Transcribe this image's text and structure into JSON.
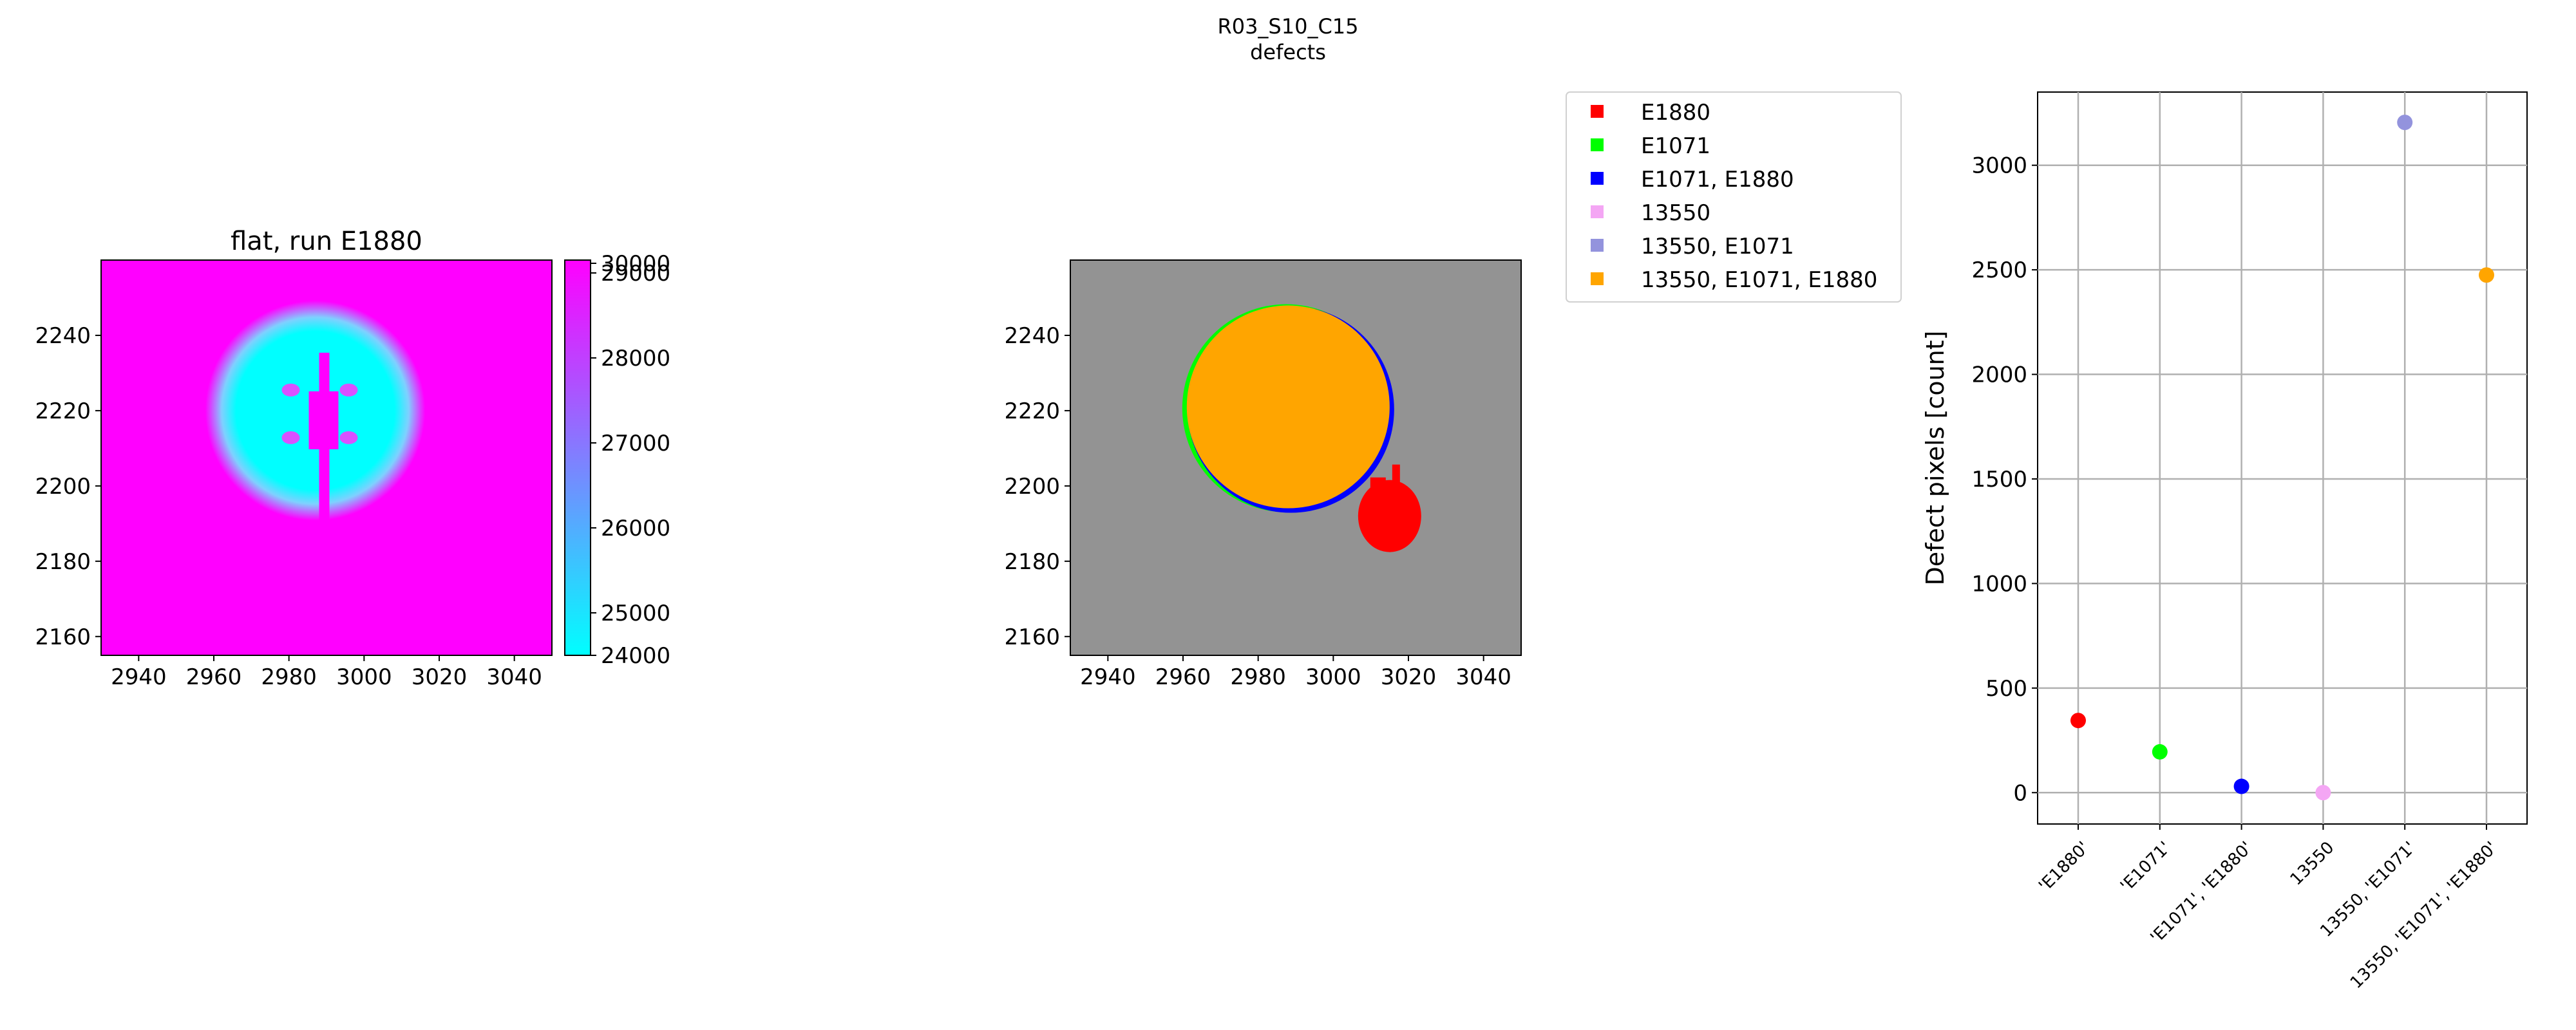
{
  "figure": {
    "suptitle_line1": "R03_S10_C15",
    "suptitle_line2": "defects"
  },
  "colors": {
    "E1880": "#ff0000",
    "E1071": "#00ff00",
    "E1071, E1880": "#0000ff",
    "13550": "#f4a6f4",
    "13550, E1071": "#9393dd",
    "13550, E1071, E1880": "#ffa500",
    "background_gray": "#939393",
    "grid": "#b0b0b0"
  },
  "chart_data": [
    {
      "type": "heatmap",
      "title": "flat, run E1880",
      "xlim": [
        2930,
        3050
      ],
      "ylim": [
        2155,
        2260
      ],
      "xticks": [
        2940,
        2960,
        2980,
        3000,
        3020,
        3040
      ],
      "yticks": [
        2160,
        2180,
        2200,
        2220,
        2240
      ],
      "colorbar": {
        "min": 24000,
        "max": 30000,
        "colors": [
          "#00ffff",
          "#ff00ff"
        ],
        "ticks": [
          24000,
          25000,
          26000,
          27000,
          28000,
          29000,
          30000
        ]
      },
      "features": {
        "spot_center": [
          2987,
          2220
        ],
        "spot_radius": 24,
        "background_level": 30000,
        "spot_level": 24000
      }
    },
    {
      "type": "heatmap",
      "title": "",
      "xlim": [
        2930,
        3050
      ],
      "ylim": [
        2155,
        2260
      ],
      "xticks": [
        2940,
        2960,
        2980,
        3000,
        3020,
        3040
      ],
      "yticks": [
        2160,
        2180,
        2200,
        2220,
        2240
      ],
      "regions": [
        {
          "label": "13550, E1071, E1880",
          "center": [
            2988,
            2221
          ],
          "radius": 27
        },
        {
          "label": "E1880",
          "center": [
            3015,
            2192
          ],
          "radius": 8
        }
      ],
      "legend": {
        "placement": "upper-right",
        "entries": [
          "E1880",
          "E1071",
          "E1071, E1880",
          "13550",
          "13550, E1071",
          "13550, E1071, E1880"
        ]
      }
    },
    {
      "type": "scatter",
      "title": "",
      "xlabel": "",
      "ylabel": "Defect pixels [count]",
      "ylim": [
        -150,
        3350
      ],
      "yticks": [
        0,
        500,
        1000,
        1500,
        2000,
        2500,
        3000
      ],
      "grid": true,
      "categories": [
        "'E1880'",
        "'E1071'",
        "'E1071', 'E1880'",
        "13550",
        "13550, 'E1071'",
        "13550, 'E1071', 'E1880'"
      ],
      "values": [
        345,
        195,
        30,
        0,
        3205,
        2475
      ],
      "point_colors": [
        "#ff0000",
        "#00ff00",
        "#0000ff",
        "#f4a6f4",
        "#9393dd",
        "#ffa500"
      ]
    }
  ]
}
